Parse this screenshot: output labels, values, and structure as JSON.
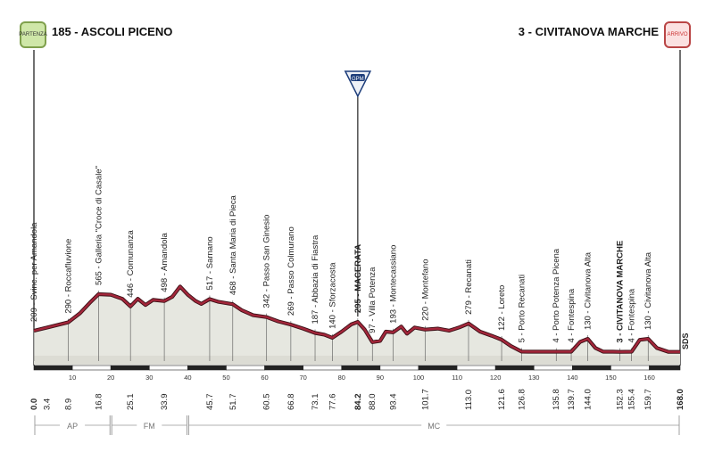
{
  "header": {
    "start_label": "185 - ASCOLI PICENO",
    "finish_label": "3 - CIVITANOVA MARCHE",
    "start_badge_text": "PARTENZA",
    "finish_badge_text": "ARRIVO"
  },
  "colors": {
    "profile_line": "#a3263a",
    "profile_fill": "#e6e7e0",
    "ground": "#dcdcd4",
    "text": "#222222",
    "km_bar": "#222222",
    "gpm_badge": "#1c3c7a"
  },
  "chart_data": {
    "type": "area",
    "title": "",
    "xlabel": "",
    "ylabel": "",
    "xlim": [
      0,
      168
    ],
    "ylim": [
      0,
      700
    ],
    "profile": [
      [
        0,
        209
      ],
      [
        3.4,
        240
      ],
      [
        8.9,
        290
      ],
      [
        12,
        380
      ],
      [
        14.5,
        480
      ],
      [
        16.8,
        565
      ],
      [
        20,
        560
      ],
      [
        23,
        520
      ],
      [
        25.1,
        446
      ],
      [
        27,
        520
      ],
      [
        29,
        460
      ],
      [
        31,
        510
      ],
      [
        33.9,
        498
      ],
      [
        36,
        540
      ],
      [
        38,
        640
      ],
      [
        40,
        560
      ],
      [
        42,
        500
      ],
      [
        43.5,
        470
      ],
      [
        45.7,
        517
      ],
      [
        48,
        490
      ],
      [
        51.7,
        468
      ],
      [
        54,
        410
      ],
      [
        57,
        360
      ],
      [
        60.5,
        342
      ],
      [
        63.5,
        300
      ],
      [
        66.8,
        269
      ],
      [
        70,
        230
      ],
      [
        73.1,
        187
      ],
      [
        75.5,
        170
      ],
      [
        77.6,
        140
      ],
      [
        80,
        200
      ],
      [
        82.5,
        270
      ],
      [
        84.2,
        295
      ],
      [
        86,
        220
      ],
      [
        88,
        97
      ],
      [
        90,
        110
      ],
      [
        91.5,
        200
      ],
      [
        93.4,
        193
      ],
      [
        95.5,
        250
      ],
      [
        97,
        180
      ],
      [
        99,
        240
      ],
      [
        101.7,
        220
      ],
      [
        105,
        230
      ],
      [
        108,
        210
      ],
      [
        110.5,
        240
      ],
      [
        113,
        279
      ],
      [
        116,
        200
      ],
      [
        119,
        160
      ],
      [
        121.6,
        122
      ],
      [
        124,
        60
      ],
      [
        126.8,
        5
      ],
      [
        128.5,
        4
      ],
      [
        130.5,
        4
      ],
      [
        133.5,
        4
      ],
      [
        135.8,
        4
      ],
      [
        139.7,
        4
      ],
      [
        142,
        100
      ],
      [
        144,
        130
      ],
      [
        146,
        40
      ],
      [
        148,
        4
      ],
      [
        150.5,
        4
      ],
      [
        152.3,
        3
      ],
      [
        155.4,
        4
      ],
      [
        157.5,
        120
      ],
      [
        159.7,
        130
      ],
      [
        162,
        40
      ],
      [
        165,
        3
      ],
      [
        168,
        3
      ]
    ],
    "locations": [
      {
        "alt": "209",
        "name": "Svinc. per Amandola",
        "km": "0.0"
      },
      {
        "alt": "290",
        "name": "Roccafluvione",
        "km": "8.9"
      },
      {
        "alt": "565",
        "name": "Galleria \"Croce di Casale\"",
        "km": "16.8"
      },
      {
        "alt": "446",
        "name": "Comunanza",
        "km": "25.1"
      },
      {
        "alt": "498",
        "name": "Amandola",
        "km": "33.9"
      },
      {
        "alt": "517",
        "name": "Sarnano",
        "km": "45.7"
      },
      {
        "alt": "468",
        "name": "Santa Maria di Pieca",
        "km": "51.7"
      },
      {
        "alt": "342",
        "name": "Passo San Ginesio",
        "km": "60.5"
      },
      {
        "alt": "269",
        "name": "Passo Colmurano",
        "km": "66.8"
      },
      {
        "alt": "187",
        "name": "Abbazia di Fiastra",
        "km": "73.1"
      },
      {
        "alt": "140",
        "name": "Sforzacosta",
        "km": "77.6"
      },
      {
        "alt": "295",
        "name": "MACERATA",
        "km": "84.2"
      },
      {
        "alt": "97",
        "name": "Villa Potenza",
        "km": "88.0"
      },
      {
        "alt": "193",
        "name": "Montecassiano",
        "km": "93.4"
      },
      {
        "alt": "220",
        "name": "Montefano",
        "km": "101.7"
      },
      {
        "alt": "279",
        "name": "Recanati",
        "km": "113.0"
      },
      {
        "alt": "122",
        "name": "Loreto",
        "km": "121.6"
      },
      {
        "alt": "5",
        "name": "Porto Recanati",
        "km": "126.8"
      },
      {
        "alt": "4",
        "name": "Porto Potenza Picena",
        "km": "135.8"
      },
      {
        "alt": "4",
        "name": "Fontespina",
        "km": "139.7"
      },
      {
        "alt": "130",
        "name": "Civitanova Alta",
        "km": "144.0"
      },
      {
        "alt": "3",
        "name": "CIVITANOVA MARCHE",
        "km": "152.3"
      },
      {
        "alt": "4",
        "name": "Fontespina",
        "km": "155.4"
      },
      {
        "alt": "130",
        "name": "Civitanova Alta",
        "km": "159.7"
      }
    ],
    "bottom_km": [
      "0.0",
      "3.4",
      "8.9",
      "16.8",
      "25.1",
      "33.9",
      "45.7",
      "51.7",
      "60.5",
      "66.8",
      "73.1",
      "77.6",
      "84.2",
      "88.0",
      "93.4",
      "101.7",
      "113.0",
      "121.6",
      "126.8",
      "135.8",
      "139.7",
      "144.0",
      "152.3",
      "155.4",
      "159.7",
      "168.0"
    ],
    "km_ticks": [
      "10",
      "20",
      "30",
      "40",
      "50",
      "60",
      "70",
      "80",
      "90",
      "100",
      "110",
      "120",
      "130",
      "140",
      "150",
      "160"
    ],
    "provinces": [
      {
        "name": "AP",
        "from": 0,
        "to": 20
      },
      {
        "name": "FM",
        "from": 20,
        "to": 40
      },
      {
        "name": "MC",
        "from": 40,
        "to": 168
      }
    ],
    "gpm": {
      "label": "GPM",
      "km": 84.2
    },
    "sds_label": "SDS"
  }
}
